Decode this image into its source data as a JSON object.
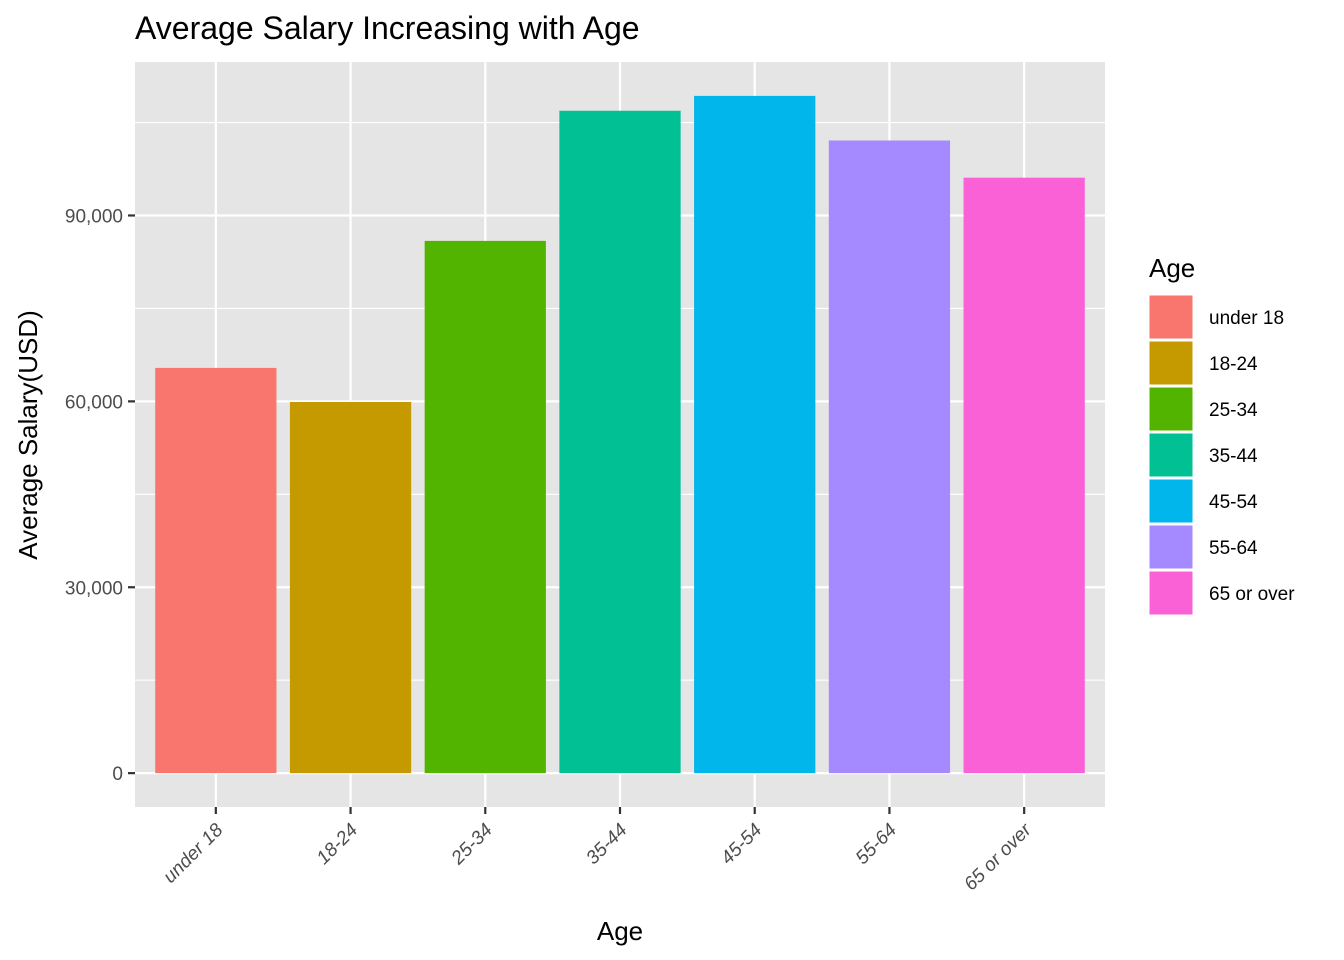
{
  "chart_data": {
    "type": "bar",
    "title": "Average Salary Increasing with Age",
    "xlabel": "Age",
    "ylabel": "Average Salary(USD)",
    "categories": [
      "under 18",
      "18-24",
      "25-34",
      "35-44",
      "45-54",
      "55-64",
      "65 or over"
    ],
    "values": [
      65400,
      59900,
      85900,
      106900,
      109300,
      102100,
      96100
    ],
    "colors": [
      "#F8766D",
      "#C49A00",
      "#53B400",
      "#00C094",
      "#00B6EB",
      "#A58AFF",
      "#FB61D7"
    ],
    "yticks": [
      0,
      30000,
      60000,
      90000
    ],
    "ytick_labels": [
      "0",
      "30,000",
      "60,000",
      "90,000"
    ],
    "ylim": [
      -5465,
      114770
    ],
    "grid": true,
    "legend": {
      "title": "Age",
      "placement": "right",
      "entries": [
        "under 18",
        "18-24",
        "25-34",
        "35-44",
        "45-54",
        "55-64",
        "65 or over"
      ]
    },
    "panel_background": "#E5E5E5",
    "grid_color": "#FFFFFF"
  }
}
